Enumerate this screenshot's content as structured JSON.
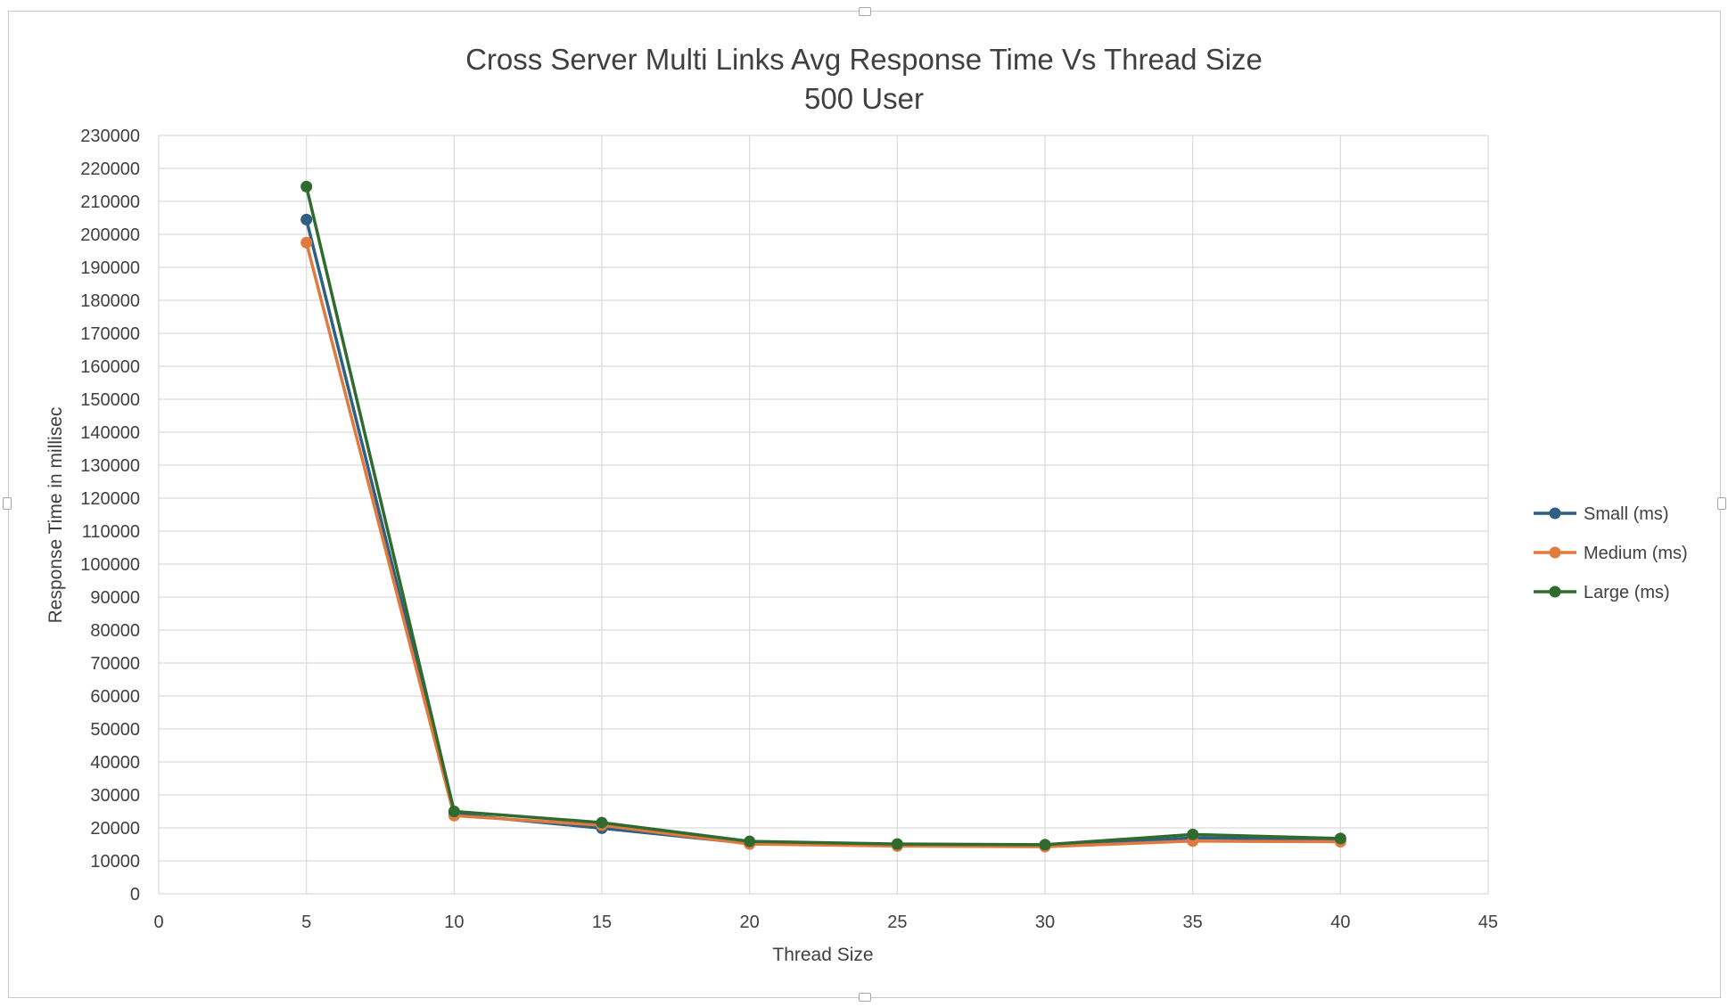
{
  "colors": {
    "small": "#2e5f84",
    "medium": "#e07a3e",
    "large": "#2f6b2f",
    "grid": "#d9d9d9",
    "text": "#404040"
  },
  "chart_data": {
    "type": "scatter",
    "mode": "lines+markers",
    "title": "Cross Server Multi Links Avg Response Time Vs Thread Size",
    "subtitle": "500 User",
    "xlabel": "Thread Size",
    "ylabel": "Response Time in millisec",
    "xlim": [
      0,
      45
    ],
    "ylim": [
      0,
      230000
    ],
    "x_ticks": [
      0,
      5,
      10,
      15,
      20,
      25,
      30,
      35,
      40,
      45
    ],
    "y_ticks": [
      0,
      10000,
      20000,
      30000,
      40000,
      50000,
      60000,
      70000,
      80000,
      90000,
      100000,
      110000,
      120000,
      130000,
      140000,
      150000,
      160000,
      170000,
      180000,
      190000,
      200000,
      210000,
      220000,
      230000
    ],
    "grid": true,
    "legend_position": "right",
    "x": [
      5,
      10,
      15,
      20,
      25,
      30,
      35,
      40
    ],
    "series": [
      {
        "name": "Small (ms)",
        "color_key": "small",
        "values": [
          204500,
          24200,
          19900,
          15300,
          14700,
          14500,
          17000,
          16400
        ]
      },
      {
        "name": "Medium (ms)",
        "color_key": "medium",
        "values": [
          197500,
          23700,
          20800,
          15100,
          14500,
          14300,
          16000,
          15800
        ]
      },
      {
        "name": "Large (ms)",
        "color_key": "large",
        "values": [
          214500,
          25000,
          21600,
          15900,
          15100,
          14900,
          18000,
          16800
        ]
      }
    ]
  }
}
